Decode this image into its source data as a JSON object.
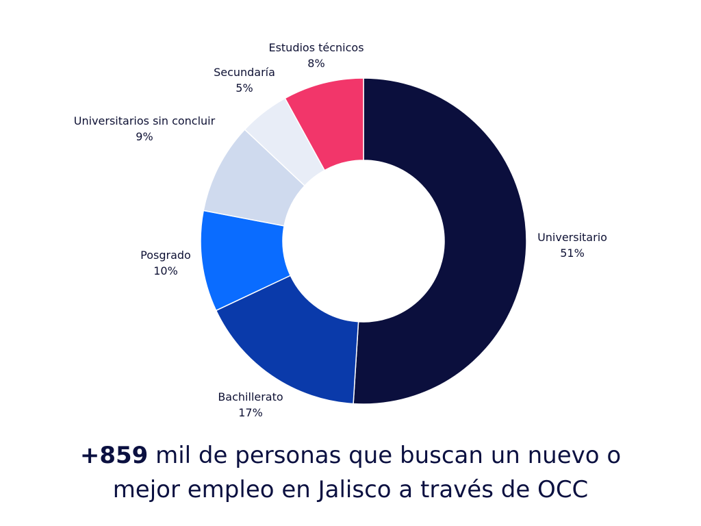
{
  "chart_data": {
    "type": "pie",
    "donut": true,
    "slices": [
      {
        "label": "Universitario",
        "value": 51,
        "value_label": "51%",
        "color": "#0b0f3d"
      },
      {
        "label": "Bachillerato",
        "value": 17,
        "value_label": "17%",
        "color": "#0a3aaa"
      },
      {
        "label": "Posgrado",
        "value": 10,
        "value_label": "10%",
        "color": "#0a6cff"
      },
      {
        "label": "Universitarios sin concluir",
        "value": 9,
        "value_label": "9%",
        "color": "#cfdaee"
      },
      {
        "label": "Secundaría",
        "value": 5,
        "value_label": "5%",
        "color": "#e8edf7",
        "label_color": "#2a2f6e"
      },
      {
        "label": "Estudios técnicos",
        "value": 8,
        "value_label": "8%",
        "color": "#f2366a"
      }
    ]
  },
  "headline": {
    "highlight": "+859",
    "line1_rest": " mil de personas que buscan un nuevo o",
    "line2": "mejor empleo en Jalisco a través de OCC"
  }
}
